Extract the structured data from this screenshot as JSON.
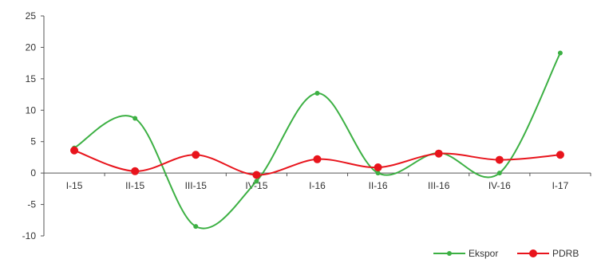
{
  "chart_data": {
    "type": "line",
    "title": "",
    "xlabel": "",
    "ylabel": "",
    "categories": [
      "I-15",
      "II-15",
      "III-15",
      "IV-15",
      "I-16",
      "II-16",
      "III-16",
      "IV-16",
      "I-17"
    ],
    "ylim": [
      -10,
      25
    ],
    "yticks": [
      25,
      20,
      15,
      10,
      5,
      0,
      -5,
      -10
    ],
    "grid": false,
    "smooth": true,
    "legend_position": "bottom-right",
    "series": [
      {
        "name": "Ekspor",
        "color": "#3cb043",
        "values": [
          4,
          8.7,
          -8.5,
          -1.3,
          12.7,
          0,
          3.2,
          0,
          19.1
        ]
      },
      {
        "name": "PDRB",
        "color": "#e8141c",
        "values": [
          3.6,
          0.3,
          2.9,
          -0.3,
          2.2,
          0.9,
          3.1,
          2.1,
          2.9
        ]
      }
    ]
  }
}
